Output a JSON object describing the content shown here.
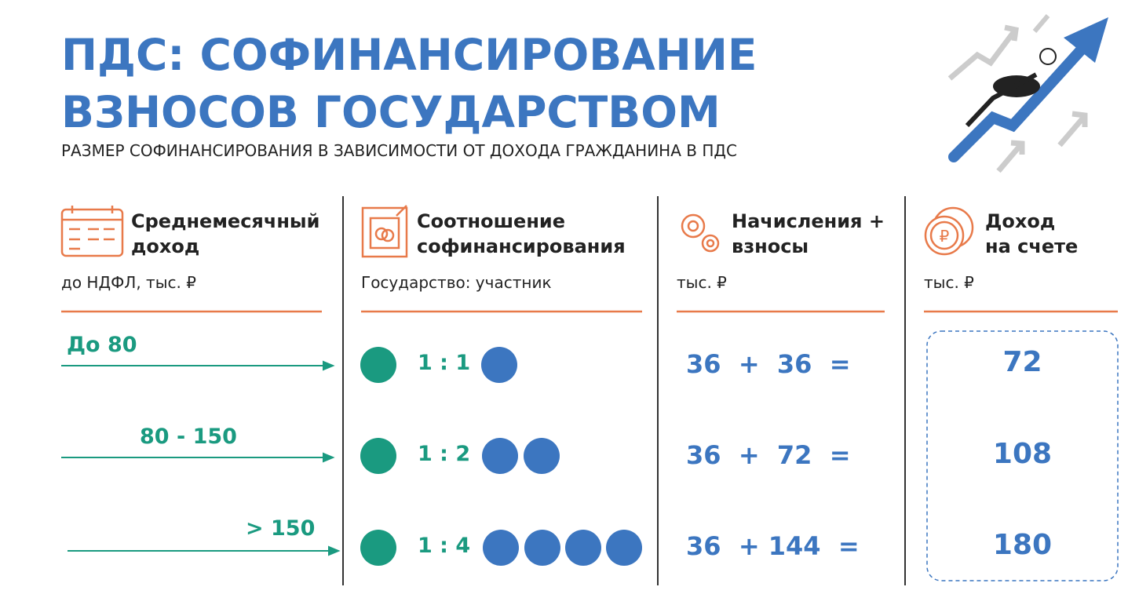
{
  "header": {
    "title_lines": [
      "ПДС: СОФИНАНСИРОВАНИЕ",
      "ВЗНОСОВ ГОСУДАРСТВОМ"
    ],
    "subtitle": "РАЗМЕР СОФИНАНСИРОВАНИЯ В ЗАВИСИМОСТИ ОТ ДОХОДА ГРАЖДАНИНА В ПДС"
  },
  "columns": [
    {
      "heading": [
        "Среднемесячный",
        "доход"
      ],
      "subheading": "до НДФЛ, тыс. ₽"
    },
    {
      "heading": [
        "Соотношение",
        "софинансирования"
      ],
      "subheading": "Государство: участник"
    },
    {
      "heading": [
        "Начисления +",
        "взносы"
      ],
      "subheading": "тыс. ₽"
    },
    {
      "heading": [
        "Доход",
        "на счете"
      ],
      "subheading": "тыс. ₽"
    }
  ],
  "rows": [
    {
      "income": "До 80",
      "ratio": "1 : 1",
      "contributions": "36  +  36  =",
      "total": "72"
    },
    {
      "income": "80 - 150",
      "ratio": "1 : 2",
      "contributions": "36  +  72  =",
      "total": "108"
    },
    {
      "income": "> 150",
      "ratio": "1 : 4",
      "contributions": "36  + 144  =",
      "total": "180"
    }
  ]
}
